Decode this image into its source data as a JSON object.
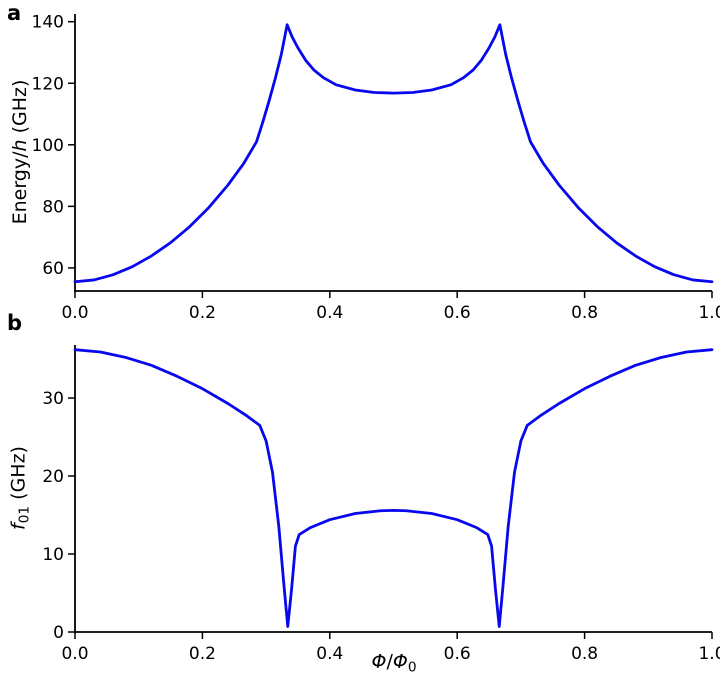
{
  "figure": {
    "background": "#ffffff",
    "line_color": "#0808ee",
    "axis_color": "#000000"
  },
  "chart_data": [
    {
      "type": "line",
      "panel_label": "a",
      "title": "",
      "ylabel_segments": [
        {
          "text": "Energy/",
          "style": "normal"
        },
        {
          "text": "h",
          "style": "italic"
        },
        {
          "text": " (GHz)",
          "style": "normal"
        }
      ],
      "xlabel_segments": [],
      "xlim": [
        0,
        1
      ],
      "ylim": [
        52.5,
        142.5
      ],
      "grid": false,
      "legend": false,
      "xticks": [
        0.0,
        0.2,
        0.4,
        0.6,
        0.8,
        1.0
      ],
      "xtick_labels": [
        "0.0",
        "0.2",
        "0.4",
        "0.6",
        "0.8",
        "1.0"
      ],
      "yticks": [
        60,
        80,
        100,
        120,
        140
      ],
      "ytick_labels": [
        "60",
        "80",
        "100",
        "120",
        "140"
      ],
      "series": [
        {
          "name": "qubit-energy-vs-flux",
          "x": [
            0.0,
            0.03,
            0.06,
            0.09,
            0.12,
            0.15,
            0.18,
            0.21,
            0.24,
            0.265,
            0.285,
            0.295,
            0.305,
            0.315,
            0.324,
            0.333,
            0.341,
            0.35,
            0.362,
            0.375,
            0.39,
            0.41,
            0.44,
            0.47,
            0.5,
            0.53,
            0.56,
            0.59,
            0.61,
            0.625,
            0.638,
            0.65,
            0.659,
            0.667,
            0.676,
            0.685,
            0.695,
            0.705,
            0.715,
            0.735,
            0.76,
            0.79,
            0.82,
            0.85,
            0.88,
            0.91,
            0.94,
            0.97,
            1.0
          ],
          "y": [
            55.5,
            56.1,
            57.8,
            60.4,
            63.9,
            68.2,
            73.4,
            79.6,
            86.9,
            94.0,
            101.0,
            107.5,
            114.5,
            122.0,
            129.5,
            139.0,
            135.0,
            131.5,
            127.5,
            124.3,
            121.8,
            119.5,
            117.8,
            117.0,
            116.8,
            117.0,
            117.8,
            119.5,
            121.8,
            124.3,
            127.5,
            131.5,
            135.0,
            139.0,
            129.5,
            122.0,
            114.5,
            107.5,
            101.0,
            94.0,
            86.9,
            79.6,
            73.4,
            68.2,
            63.9,
            60.4,
            57.8,
            56.1,
            55.5
          ]
        }
      ]
    },
    {
      "type": "line",
      "panel_label": "b",
      "title": "",
      "ylabel_segments": [
        {
          "text": "f",
          "style": "italic"
        },
        {
          "text": "01",
          "style": "sub"
        },
        {
          "text": " (GHz)",
          "style": "normal"
        }
      ],
      "xlabel_segments": [
        {
          "text": "Φ",
          "style": "italic"
        },
        {
          "text": "/",
          "style": "normal"
        },
        {
          "text": "Φ",
          "style": "italic"
        },
        {
          "text": "0",
          "style": "sub"
        }
      ],
      "xlim": [
        0,
        1
      ],
      "ylim": [
        0,
        36.8
      ],
      "grid": false,
      "legend": false,
      "xticks": [
        0.0,
        0.2,
        0.4,
        0.6,
        0.8,
        1.0
      ],
      "xtick_labels": [
        "0.0",
        "0.2",
        "0.4",
        "0.6",
        "0.8",
        "1.0"
      ],
      "yticks": [
        0,
        10,
        20,
        30
      ],
      "ytick_labels": [
        "0",
        "10",
        "20",
        "30"
      ],
      "series": [
        {
          "name": "f01-transition-frequency-vs-flux",
          "x": [
            0.0,
            0.04,
            0.08,
            0.12,
            0.16,
            0.2,
            0.24,
            0.27,
            0.29,
            0.3,
            0.31,
            0.32,
            0.328,
            0.334,
            0.34,
            0.346,
            0.352,
            0.37,
            0.4,
            0.44,
            0.48,
            0.5,
            0.52,
            0.56,
            0.6,
            0.63,
            0.648,
            0.654,
            0.66,
            0.666,
            0.672,
            0.68,
            0.69,
            0.7,
            0.71,
            0.73,
            0.76,
            0.8,
            0.84,
            0.88,
            0.92,
            0.96,
            1.0
          ],
          "y": [
            36.2,
            35.9,
            35.2,
            34.2,
            32.8,
            31.2,
            29.3,
            27.7,
            26.5,
            24.5,
            20.5,
            13.5,
            6.0,
            0.7,
            5.5,
            11.0,
            12.5,
            13.4,
            14.4,
            15.2,
            15.55,
            15.6,
            15.55,
            15.2,
            14.4,
            13.4,
            12.5,
            11.0,
            5.5,
            0.7,
            6.0,
            13.5,
            20.5,
            24.5,
            26.5,
            27.7,
            29.3,
            31.2,
            32.8,
            34.2,
            35.2,
            35.9,
            36.2
          ]
        }
      ]
    }
  ]
}
